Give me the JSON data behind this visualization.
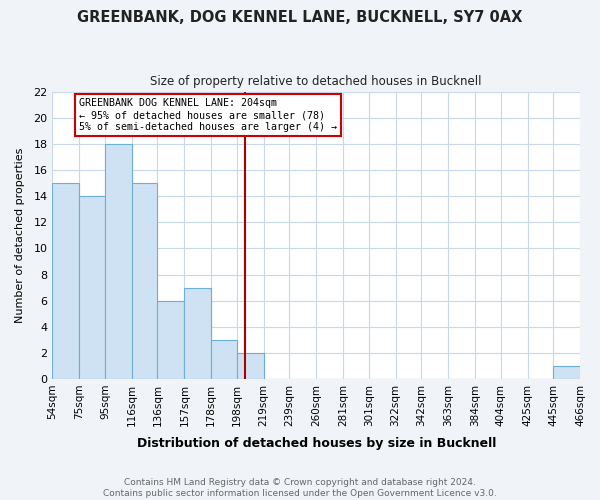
{
  "title": "GREENBANK, DOG KENNEL LANE, BUCKNELL, SY7 0AX",
  "subtitle": "Size of property relative to detached houses in Bucknell",
  "xlabel": "Distribution of detached houses by size in Bucknell",
  "ylabel": "Number of detached properties",
  "footer_line1": "Contains HM Land Registry data © Crown copyright and database right 2024.",
  "footer_line2": "Contains public sector information licensed under the Open Government Licence v3.0.",
  "bin_edges": [
    54,
    75,
    95,
    116,
    136,
    157,
    178,
    198,
    219,
    239,
    260,
    281,
    301,
    322,
    342,
    363,
    384,
    404,
    425,
    445,
    466
  ],
  "bin_labels": [
    "54sqm",
    "75sqm",
    "95sqm",
    "116sqm",
    "136sqm",
    "157sqm",
    "178sqm",
    "198sqm",
    "219sqm",
    "239sqm",
    "260sqm",
    "281sqm",
    "301sqm",
    "322sqm",
    "342sqm",
    "363sqm",
    "384sqm",
    "404sqm",
    "425sqm",
    "445sqm",
    "466sqm"
  ],
  "counts": [
    15,
    14,
    18,
    15,
    6,
    7,
    3,
    2,
    0,
    0,
    0,
    0,
    0,
    0,
    0,
    0,
    0,
    0,
    0,
    1
  ],
  "bar_color": "#cfe2f3",
  "bar_edgecolor": "#6baed6",
  "ylim": [
    0,
    22
  ],
  "yticks": [
    0,
    2,
    4,
    6,
    8,
    10,
    12,
    14,
    16,
    18,
    20,
    22
  ],
  "vline_x": 204,
  "vline_color": "#aa0000",
  "annotation_title": "GREENBANK DOG KENNEL LANE: 204sqm",
  "annotation_line1": "← 95% of detached houses are smaller (78)",
  "annotation_line2": "5% of semi-detached houses are larger (4) →",
  "annotation_box_edgecolor": "#cc0000",
  "plot_bg_color": "#ffffff",
  "fig_bg_color": "#f0f4f8",
  "grid_color": "#c8d8e8",
  "title_color": "#222222",
  "footer_color": "#666666"
}
